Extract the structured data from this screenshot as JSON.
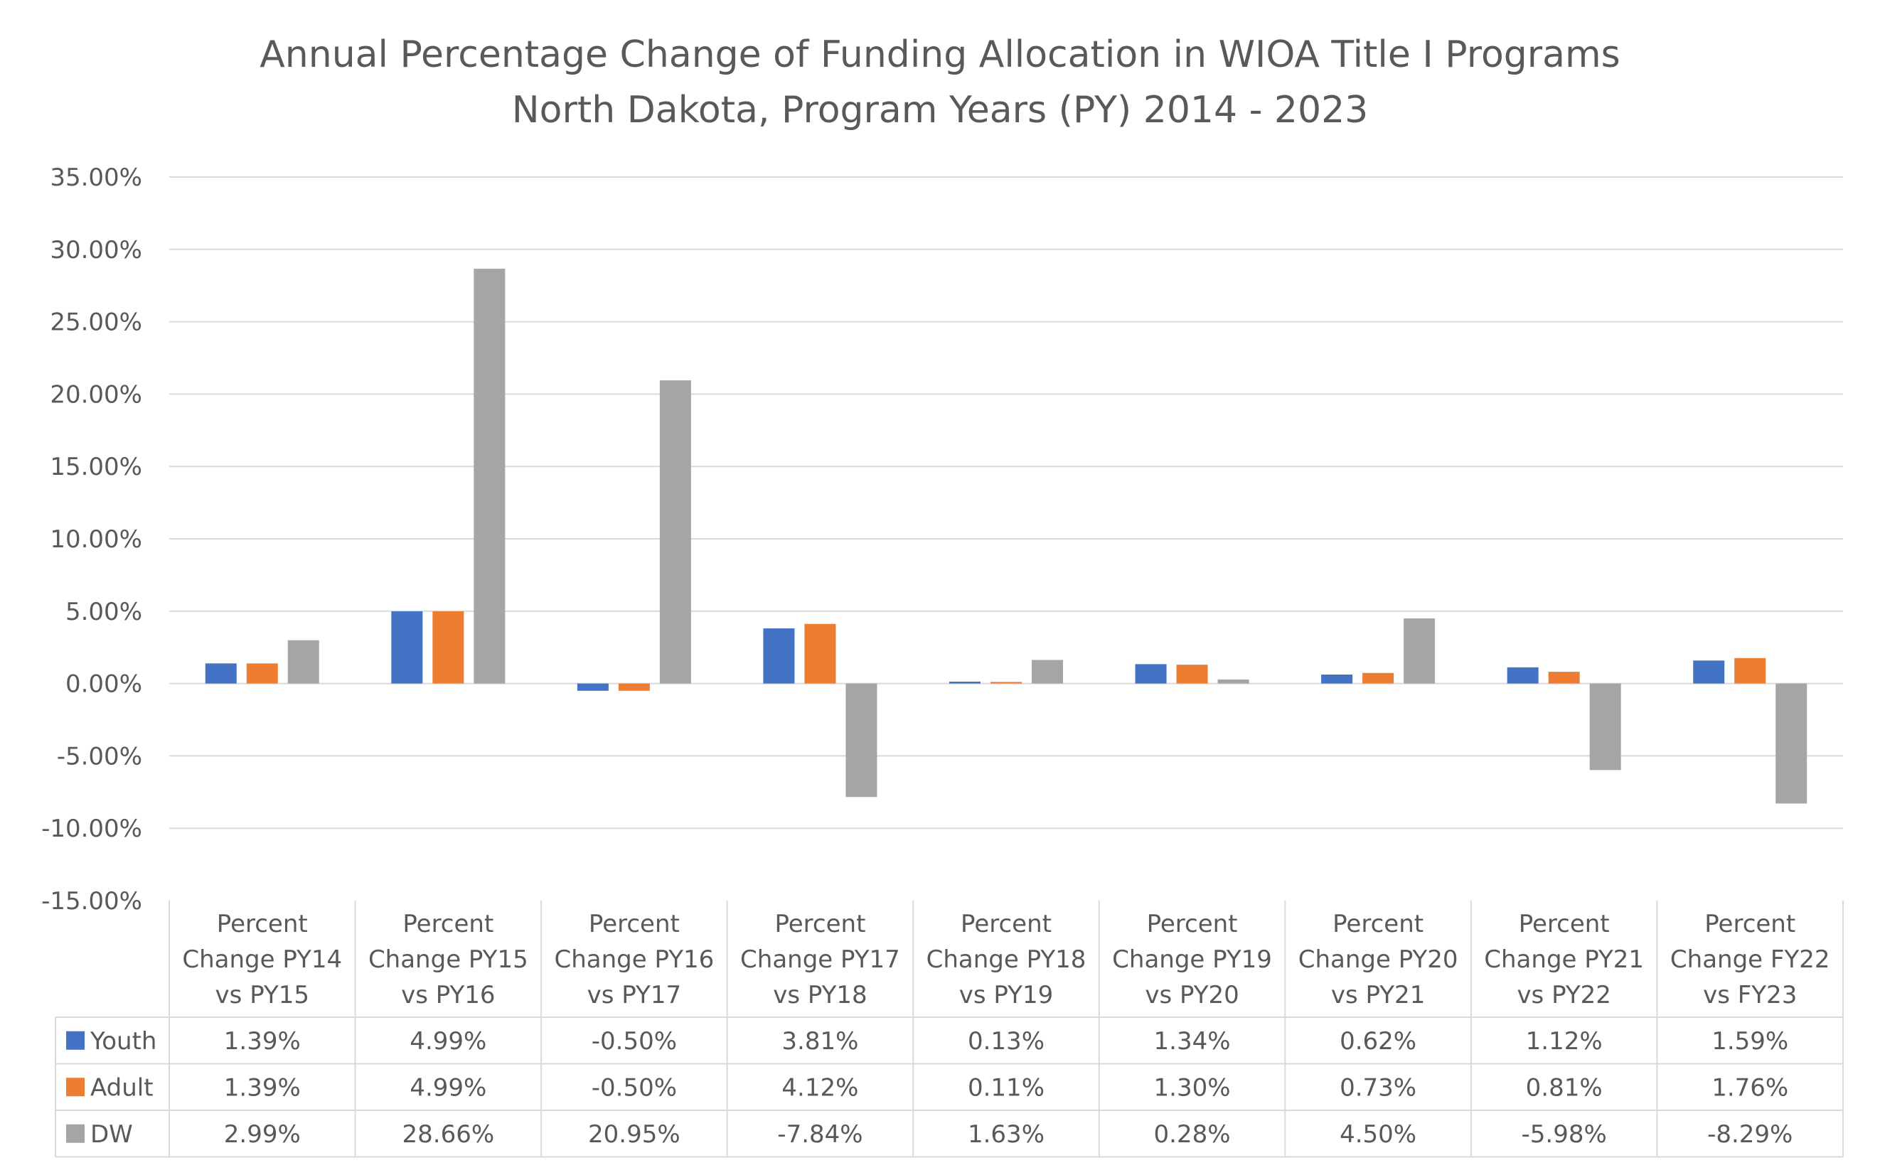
{
  "chart_data": {
    "type": "bar",
    "title": "Annual Percentage Change of Funding Allocation in WIOA Title I Programs",
    "subtitle": "North Dakota, Program Years (PY) 2014 - 2023",
    "categories": [
      [
        "Percent",
        "Change PY14",
        "vs PY15"
      ],
      [
        "Percent",
        "Change PY15",
        "vs PY16"
      ],
      [
        "Percent",
        "Change PY16",
        "vs PY17"
      ],
      [
        "Percent",
        "Change PY17",
        "vs PY18"
      ],
      [
        "Percent",
        "Change PY18",
        "vs PY19"
      ],
      [
        "Percent",
        "Change PY19",
        "vs PY20"
      ],
      [
        "Percent",
        "Change PY20",
        "vs PY21"
      ],
      [
        "Percent",
        "Change PY21",
        "vs PY22"
      ],
      [
        "Percent",
        "Change FY22",
        "vs FY23"
      ]
    ],
    "series": [
      {
        "name": "Youth",
        "color": "#4472c4",
        "values": [
          1.39,
          4.99,
          -0.5,
          3.81,
          0.13,
          1.34,
          0.62,
          1.12,
          1.59
        ],
        "labels": [
          "1.39%",
          "4.99%",
          "-0.50%",
          "3.81%",
          "0.13%",
          "1.34%",
          "0.62%",
          "1.12%",
          "1.59%"
        ]
      },
      {
        "name": "Adult",
        "color": "#ed7d31",
        "values": [
          1.39,
          4.99,
          -0.5,
          4.12,
          0.11,
          1.3,
          0.73,
          0.81,
          1.76
        ],
        "labels": [
          "1.39%",
          "4.99%",
          "-0.50%",
          "4.12%",
          "0.11%",
          "1.30%",
          "0.73%",
          "0.81%",
          "1.76%"
        ]
      },
      {
        "name": "DW",
        "color": "#a5a5a5",
        "values": [
          2.99,
          28.66,
          20.95,
          -7.84,
          1.63,
          0.28,
          4.5,
          -5.98,
          -8.29
        ],
        "labels": [
          "2.99%",
          "28.66%",
          "20.95%",
          "-7.84%",
          "1.63%",
          "0.28%",
          "4.50%",
          "-5.98%",
          "-8.29%"
        ]
      }
    ],
    "yticks": [
      "35.00%",
      "30.00%",
      "25.00%",
      "20.00%",
      "15.00%",
      "10.00%",
      "5.00%",
      "0.00%",
      "-5.00%",
      "-10.00%",
      "-15.00%"
    ],
    "ylim": [
      -15,
      35
    ],
    "grid": true,
    "legend": "data-table",
    "xlabel": "",
    "ylabel": ""
  }
}
